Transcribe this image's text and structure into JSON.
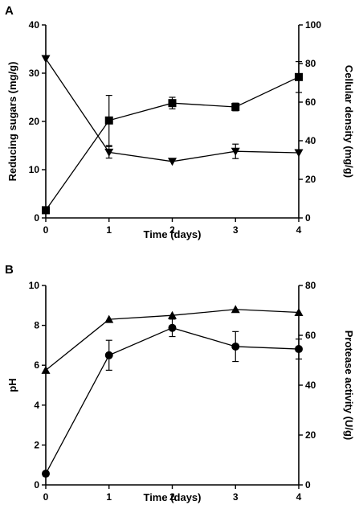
{
  "chart_data": [
    {
      "type": "line",
      "panel_label": "A",
      "xlabel": "Time (days)",
      "ylabel": "Reducing sugars (mg/g)",
      "y2label": "Cellular density (mg/g)",
      "x": [
        0,
        1,
        2,
        3,
        4
      ],
      "xticks": [
        "0",
        "1",
        "2",
        "3",
        "4"
      ],
      "ylim": [
        0,
        40
      ],
      "yticks": [
        "0",
        "10",
        "20",
        "30",
        "40"
      ],
      "y2lim": [
        0,
        100
      ],
      "y2ticks": [
        "0",
        "20",
        "40",
        "60",
        "80",
        "100"
      ],
      "series": [
        {
          "axis": "right",
          "marker": "square",
          "values": [
            4,
            50.5,
            59.5,
            57.5,
            73
          ],
          "errors": [
            0,
            13,
            3,
            2,
            8
          ]
        },
        {
          "axis": "left",
          "marker": "triangle-down",
          "values": [
            33,
            13.6,
            11.7,
            13.8,
            13.5
          ],
          "errors": [
            0,
            1.2,
            0,
            1.5,
            0
          ]
        }
      ]
    },
    {
      "type": "line",
      "panel_label": "B",
      "xlabel": "Time (days)",
      "ylabel": "pH",
      "y2label": "Protease activity (U/g)",
      "x": [
        0,
        1,
        2,
        3,
        4
      ],
      "xticks": [
        "0",
        "1",
        "2",
        "3",
        "4"
      ],
      "ylim": [
        0,
        10
      ],
      "yticks": [
        "0",
        "2",
        "4",
        "6",
        "8",
        "10"
      ],
      "y2lim": [
        0,
        80
      ],
      "y2ticks": [
        "0",
        "20",
        "40",
        "60",
        "80"
      ],
      "series": [
        {
          "axis": "left",
          "marker": "triangle-up",
          "values": [
            5.75,
            8.3,
            8.5,
            8.8,
            8.65
          ],
          "errors": [
            0,
            0,
            0,
            0,
            0
          ]
        },
        {
          "axis": "right",
          "marker": "circle",
          "values": [
            4.5,
            52,
            63,
            55.5,
            54.5
          ],
          "errors": [
            0,
            6,
            3.5,
            6,
            4
          ]
        }
      ]
    }
  ]
}
